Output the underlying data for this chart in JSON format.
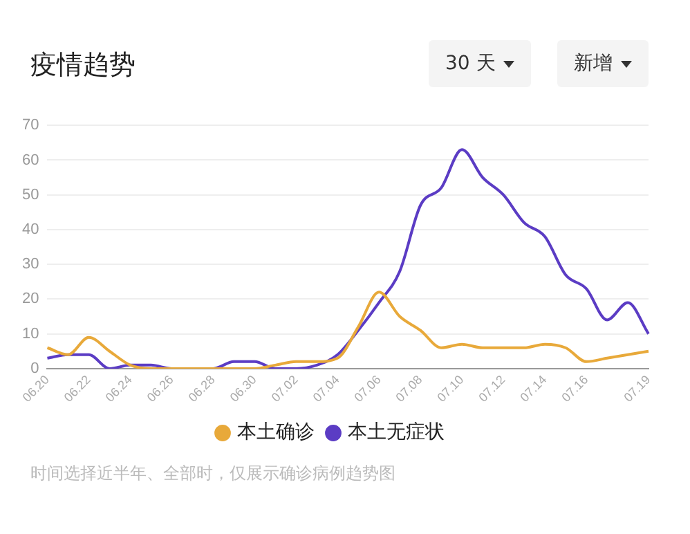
{
  "chart_data": {
    "type": "line",
    "title": "疫情趋势",
    "annotations": [
      "30 天",
      "新增",
      "时间选择近半年、全部时，仅展示确诊病例趋势图"
    ],
    "categories": [
      "06.20",
      null,
      "06.22",
      null,
      "06.24",
      null,
      "06.26",
      null,
      "06.28",
      null,
      "06.30",
      null,
      "07.02",
      null,
      "07.04",
      null,
      "07.06",
      null,
      "07.08",
      null,
      "07.10",
      null,
      "07.12",
      null,
      "07.14",
      null,
      "07.16",
      null,
      null,
      "07.19"
    ],
    "series": [
      {
        "name": "本土确诊",
        "color": "#e8a93a",
        "values": [
          6,
          4,
          9,
          5,
          1,
          0,
          0,
          0,
          0,
          0,
          0,
          1,
          2,
          2,
          3,
          12,
          22,
          15,
          11,
          6,
          7,
          6,
          6,
          6,
          7,
          6,
          2,
          3,
          4,
          5
        ]
      },
      {
        "name": "本土无症状",
        "color": "#5b3cc4",
        "values": [
          3,
          4,
          4,
          0,
          1,
          1,
          0,
          0,
          0,
          2,
          2,
          0,
          0,
          1,
          4,
          11,
          19,
          28,
          47,
          52,
          63,
          55,
          50,
          42,
          38,
          27,
          23,
          14,
          19,
          10
        ]
      }
    ],
    "ylim": [
      0,
      70
    ],
    "yticks": [
      0,
      10,
      20,
      30,
      40,
      50,
      60,
      70
    ],
    "grid": "y",
    "legend": "bottom",
    "marker": "none",
    "line_style": "solid"
  }
}
